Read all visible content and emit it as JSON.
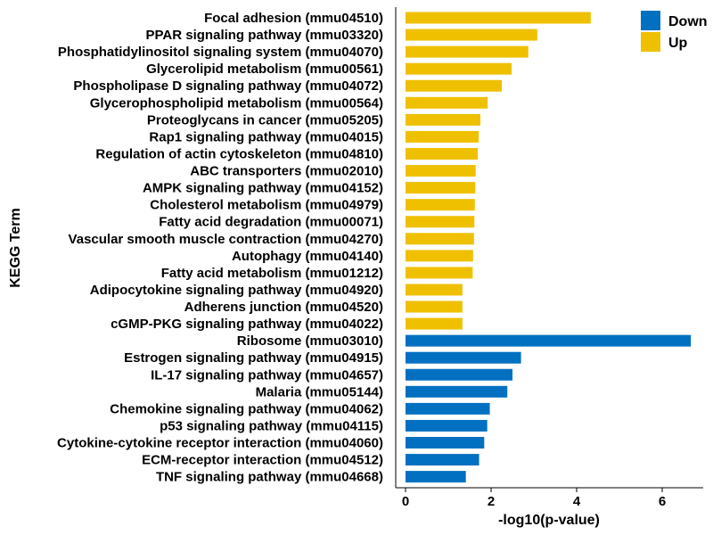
{
  "chart_data": {
    "type": "bar",
    "orientation": "horizontal",
    "xlabel": "-log10(p-value)",
    "ylabel": "KEGG Term",
    "xlim": [
      0,
      7
    ],
    "xticks": [
      0,
      2,
      4,
      6
    ],
    "grid": false,
    "legend_position": "top-right",
    "legend": [
      {
        "name": "Down",
        "color": "#0270c1"
      },
      {
        "name": "Up",
        "color": "#efc000"
      }
    ],
    "categories": [
      "Focal adhesion (mmu04510)",
      "PPAR signaling pathway (mmu03320)",
      "Phosphatidylinositol signaling system (mmu04070)",
      "Glycerolipid metabolism (mmu00561)",
      "Phospholipase D signaling pathway (mmu04072)",
      "Glycerophospholipid metabolism (mmu00564)",
      "Proteoglycans in cancer (mmu05205)",
      "Rap1 signaling pathway (mmu04015)",
      "Regulation of actin cytoskeleton (mmu04810)",
      "ABC transporters (mmu02010)",
      "AMPK signaling pathway (mmu04152)",
      "Cholesterol metabolism (mmu04979)",
      "Fatty acid degradation (mmu00071)",
      "Vascular smooth muscle contraction (mmu04270)",
      "Autophagy (mmu04140)",
      "Fatty acid metabolism (mmu01212)",
      "Adipocytokine signaling pathway (mmu04920)",
      "Adherens junction (mmu04520)",
      "cGMP-PKG signaling pathway (mmu04022)",
      "Ribosome (mmu03010)",
      "Estrogen signaling pathway (mmu04915)",
      "IL-17 signaling pathway (mmu04657)",
      "Malaria (mmu05144)",
      "Chemokine signaling pathway (mmu04062)",
      "p53 signaling pathway (mmu04115)",
      "Cytokine-cytokine receptor interaction (mmu04060)",
      "ECM-receptor interaction (mmu04512)",
      "TNF signaling pathway (mmu04668)"
    ],
    "values": [
      4.33,
      3.08,
      2.87,
      2.48,
      2.25,
      1.92,
      1.75,
      1.71,
      1.69,
      1.64,
      1.63,
      1.62,
      1.61,
      1.6,
      1.58,
      1.57,
      1.33,
      1.33,
      1.33,
      6.67,
      2.7,
      2.5,
      2.38,
      1.97,
      1.91,
      1.84,
      1.72,
      1.41
    ],
    "groups": [
      "Up",
      "Up",
      "Up",
      "Up",
      "Up",
      "Up",
      "Up",
      "Up",
      "Up",
      "Up",
      "Up",
      "Up",
      "Up",
      "Up",
      "Up",
      "Up",
      "Up",
      "Up",
      "Up",
      "Down",
      "Down",
      "Down",
      "Down",
      "Down",
      "Down",
      "Down",
      "Down",
      "Down"
    ]
  }
}
